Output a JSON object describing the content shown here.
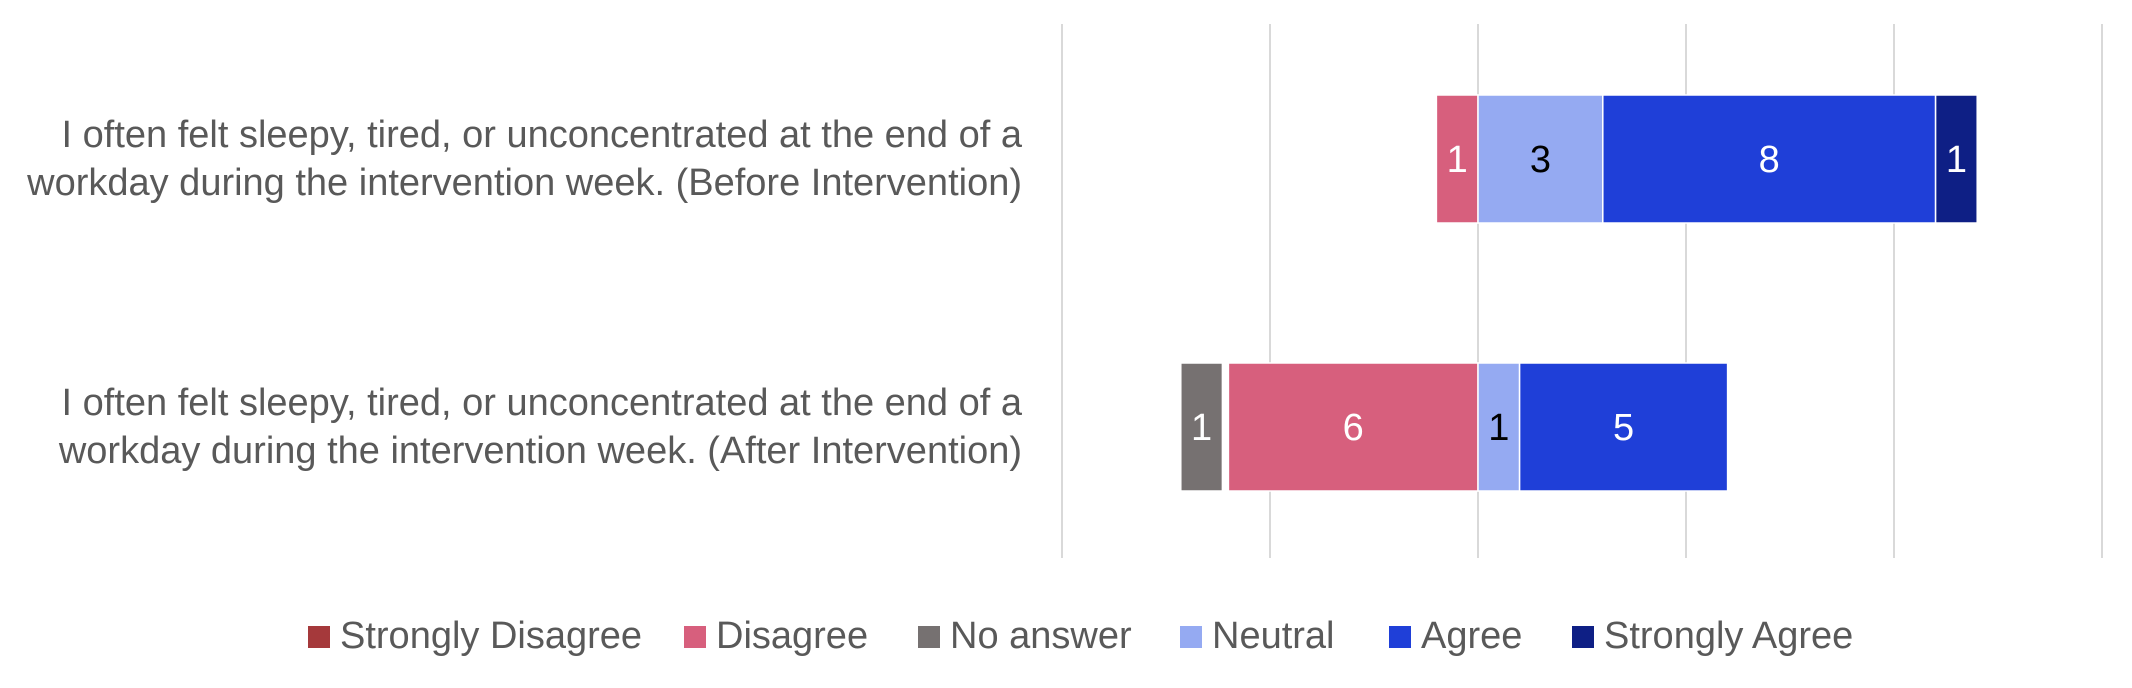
{
  "chart_data": {
    "type": "bar",
    "orientation": "horizontal",
    "stacked": true,
    "diverging": true,
    "grid": true,
    "legend_position": "bottom",
    "categories": [
      "I often felt sleepy, tired, or unconcentrated at the end of a workday during the intervention week. (Before Intervention)",
      "I often felt sleepy, tired, or unconcentrated at the end of a workday during the intervention week. (After Intervention)"
    ],
    "category_lines": [
      [
        "I often felt sleepy, tired, or unconcentrated at the end of a",
        "workday during the intervention week. (Before Intervention)"
      ],
      [
        "I often felt sleepy, tired, or unconcentrated at the end of a",
        "workday during the intervention week. (After Intervention)"
      ]
    ],
    "series": [
      {
        "name": "Strongly Disagree",
        "color": "#a5393b",
        "label_color": "#ffffff",
        "values": [
          0,
          0
        ]
      },
      {
        "name": "Disagree",
        "color": "#d75f7d",
        "label_color": "#ffffff",
        "values": [
          1,
          6
        ]
      },
      {
        "name": "No answer",
        "color": "#767171",
        "label_color": "#ffffff",
        "values": [
          0,
          1
        ]
      },
      {
        "name": "Neutral",
        "color": "#95aaf2",
        "label_color": "#000000",
        "values": [
          3,
          1
        ]
      },
      {
        "name": "Agree",
        "color": "#1f3fd8",
        "label_color": "#ffffff",
        "values": [
          8,
          5
        ]
      },
      {
        "name": "Strongly Agree",
        "color": "#0e1f85",
        "label_color": "#ffffff",
        "values": [
          1,
          0
        ]
      }
    ]
  }
}
